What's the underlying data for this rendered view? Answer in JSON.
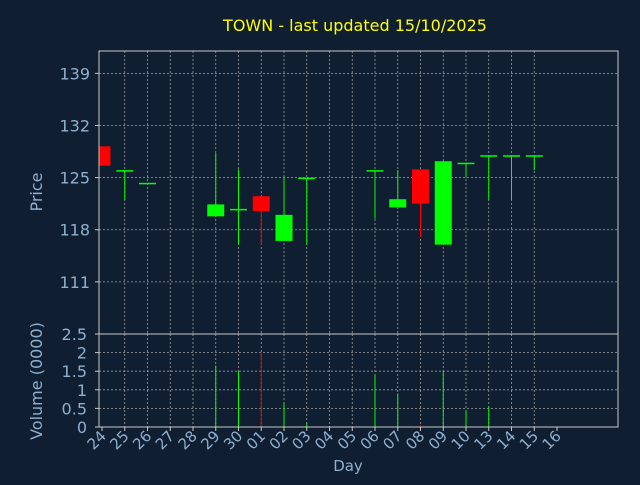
{
  "chart_data": {
    "type": "candlestick",
    "title": "TOWN - last updated 15/10/2025",
    "xlabel": "Day",
    "price_panel": {
      "ylabel": "Price",
      "yticks": [
        111,
        118,
        125,
        132,
        139
      ],
      "ylim": [
        104,
        142
      ]
    },
    "volume_panel": {
      "ylabel": "Volume (0000)",
      "yticks": [
        0,
        0.5,
        1,
        1.5,
        2,
        2.5
      ],
      "ylim": [
        0,
        2.5
      ]
    },
    "x_tick_labels": [
      "24",
      "25",
      "26",
      "27",
      "28",
      "29",
      "30",
      "01",
      "02",
      "03",
      "04",
      "05",
      "06",
      "07",
      "08",
      "09",
      "10",
      "13",
      "14",
      "15",
      "16"
    ],
    "candles": [
      {
        "day": "24",
        "open": 129.2,
        "high": 129.2,
        "low": 126.6,
        "close": 126.6,
        "volume": 0
      },
      {
        "day": "25",
        "open": 126.0,
        "high": 126.0,
        "low": 122.0,
        "close": 126.0,
        "volume": 0
      },
      {
        "day": "26",
        "open": 124.3,
        "high": 124.3,
        "low": 124.3,
        "close": 124.3,
        "volume": 0
      },
      {
        "day": "29",
        "open": 119.8,
        "high": 128.3,
        "low": 119.8,
        "close": 121.4,
        "volume": 1.65
      },
      {
        "day": "30",
        "open": 120.8,
        "high": 126.1,
        "low": 116.0,
        "close": 120.8,
        "volume": 1.5
      },
      {
        "day": "01",
        "open": 122.5,
        "high": 122.5,
        "low": 116.0,
        "close": 120.5,
        "volume": 2.0
      },
      {
        "day": "02",
        "open": 116.5,
        "high": 125.0,
        "low": 116.5,
        "close": 120.0,
        "volume": 0.65
      },
      {
        "day": "03",
        "open": 125.0,
        "high": 125.0,
        "low": 116.0,
        "close": 125.0,
        "volume": 0.1
      },
      {
        "day": "06",
        "open": 126.0,
        "high": 126.0,
        "low": 119.5,
        "close": 126.0,
        "volume": 1.4
      },
      {
        "day": "07",
        "open": 121.0,
        "high": 126.0,
        "low": 121.0,
        "close": 122.1,
        "volume": 0.9
      },
      {
        "day": "08",
        "open": 126.1,
        "high": 126.1,
        "low": 117.0,
        "close": 121.5,
        "volume": 0.05
      },
      {
        "day": "09",
        "open": 116.0,
        "high": 127.2,
        "low": 116.0,
        "close": 127.2,
        "volume": 1.5
      },
      {
        "day": "10",
        "open": 127.0,
        "high": 127.0,
        "low": 125.0,
        "close": 127.0,
        "volume": 0.45
      },
      {
        "day": "13",
        "open": 128.0,
        "high": 128.0,
        "low": 122.0,
        "close": 128.0,
        "volume": 0.55
      },
      {
        "day": "14",
        "open": 128.0,
        "high": 128.0,
        "low": 122.0,
        "close": 128.0,
        "volume": 0
      },
      {
        "day": "15",
        "open": 128.0,
        "high": 128.0,
        "low": 126.0,
        "close": 128.0,
        "volume": 0
      }
    ],
    "colors": {
      "background": "#0f1e30",
      "up": "#00ff00",
      "down": "#ff0000",
      "title": "#ffff00",
      "axis_text": "#8fb0d0",
      "grid": "#a0a0a0",
      "frame": "#c8c8c8"
    }
  }
}
